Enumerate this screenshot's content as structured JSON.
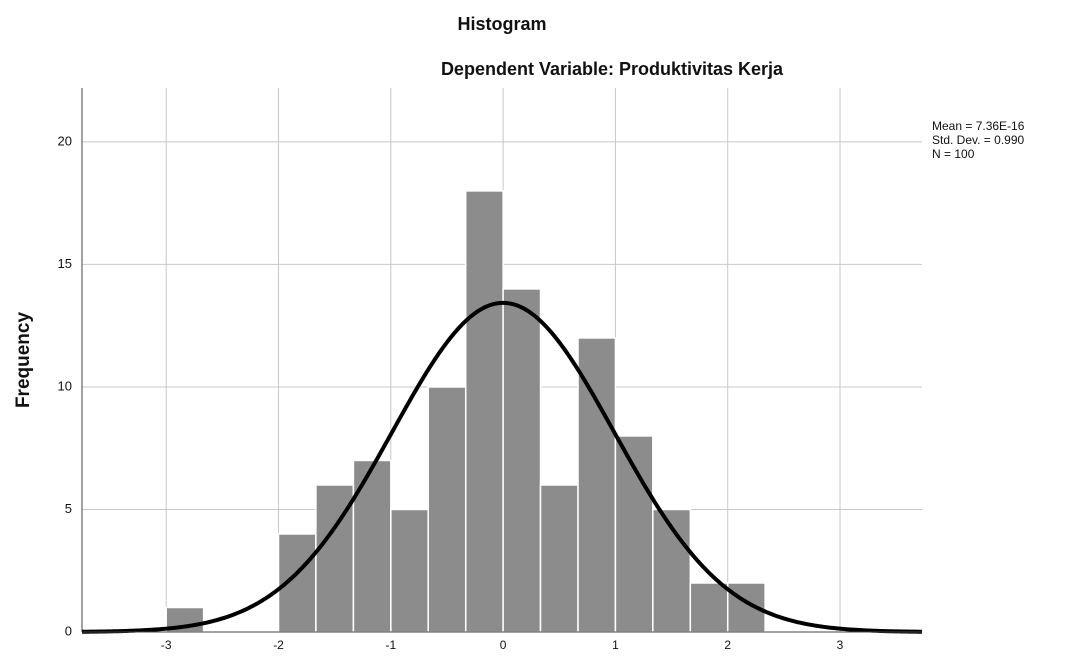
{
  "chart_data": {
    "type": "histogram",
    "title": "Histogram",
    "subtitle": "Dependent Variable: Produktivitas Kerja",
    "y_label": "Frequency",
    "bins": [
      -3,
      -2.667,
      -2.333,
      -2,
      -1.667,
      -1.333,
      -1,
      -0.667,
      -0.333,
      0,
      0.333,
      0.667,
      1,
      1.333,
      1.667,
      2,
      2.333
    ],
    "counts": [
      1,
      0,
      0,
      4,
      6,
      7,
      5,
      10,
      18,
      14,
      6,
      12,
      8,
      5,
      2,
      2
    ],
    "color": "#8c8c8c",
    "stats": [
      {
        "value": 7.36e-16,
        "label": "Mean = 7.36E-16"
      },
      {
        "value": 0.99,
        "label": "Std. Dev. = 0.990"
      },
      {
        "value": 100,
        "label": "N = 100"
      }
    ],
    "xlim": [
      -3.75,
      3.73
    ],
    "xticks": [
      -3,
      -2,
      -1,
      0,
      1,
      2,
      3
    ],
    "ylim": [
      0,
      22.2
    ],
    "yticks": [
      0,
      5,
      10,
      15,
      20
    ],
    "grid": true
  }
}
